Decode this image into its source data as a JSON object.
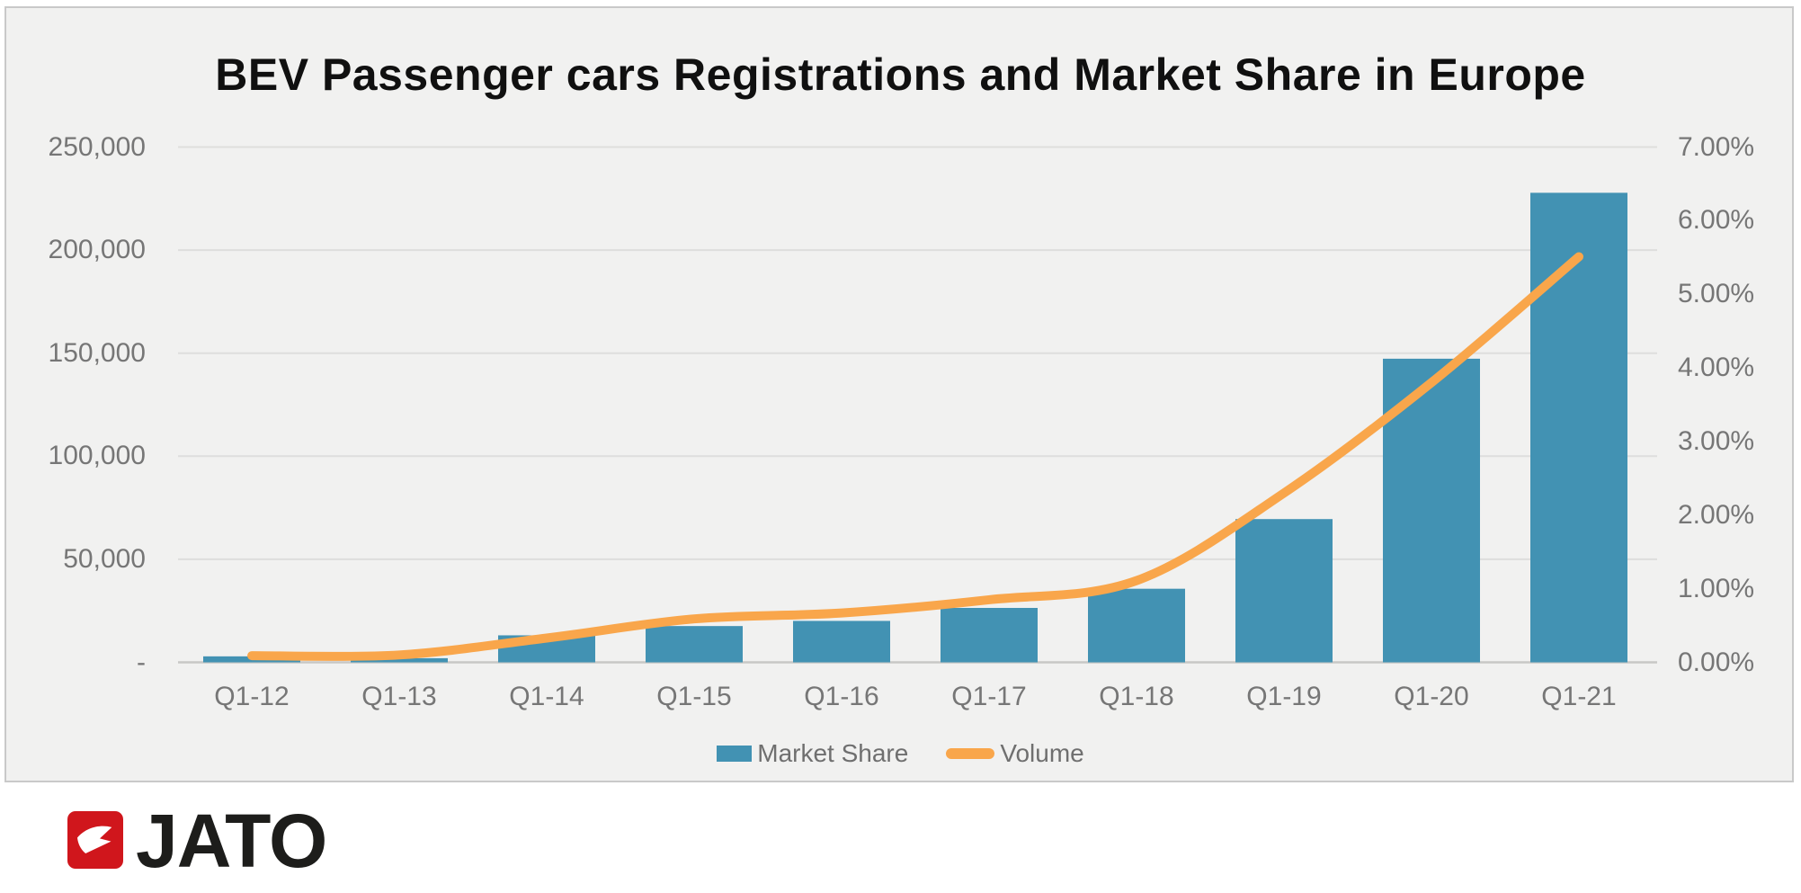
{
  "page": {
    "background": "#FFFFFF"
  },
  "panel": {
    "background": "#F1F1F0",
    "border_color": "#C9C9C9"
  },
  "chart_data": {
    "type": "bar",
    "subtype": "combo-bar-line",
    "title": "BEV Passenger cars Registrations and Market Share in Europe",
    "categories": [
      "Q1-12",
      "Q1-13",
      "Q1-14",
      "Q1-15",
      "Q1-16",
      "Q1-17",
      "Q1-18",
      "Q1-19",
      "Q1-20",
      "Q1-21"
    ],
    "series": [
      {
        "legend_label": "Market Share",
        "mark": "bar",
        "axis": "left",
        "color": "#4292B3",
        "values": [
          2900,
          2000,
          13100,
          17600,
          20100,
          26400,
          35700,
          69500,
          147300,
          227800
        ]
      },
      {
        "legend_label": "Volume",
        "mark": "line",
        "axis": "right",
        "color": "#F9A64B",
        "values": [
          0.09,
          0.1,
          0.33,
          0.59,
          0.67,
          0.85,
          1.11,
          2.3,
          3.8,
          5.51
        ]
      }
    ],
    "left_axis": {
      "min": 0,
      "max": 250000,
      "tick_step": 50000,
      "tick_labels": [
        "250,000",
        "200,000",
        "150,000",
        "100,000",
        "50,000",
        "-"
      ]
    },
    "right_axis": {
      "min": 0,
      "max": 7,
      "tick_labels": [
        "7.00%",
        "6.00%",
        "5.00%",
        "4.00%",
        "3.00%",
        "2.00%",
        "1.00%",
        "0.00%"
      ]
    },
    "gridlines": true,
    "gridline_color": "#DEDEDD",
    "baseline_color": "#C7C7C6",
    "legend_position": "bottom"
  },
  "legend": {
    "items": [
      {
        "label": "Market Share",
        "color": "#4292B3",
        "marker": "square"
      },
      {
        "label": "Volume",
        "color": "#F9A64B",
        "marker": "line"
      }
    ]
  },
  "footer": {
    "brand": "JATO",
    "logo_color": "#D0161C",
    "logo_text_color": "#1D1D1B"
  }
}
